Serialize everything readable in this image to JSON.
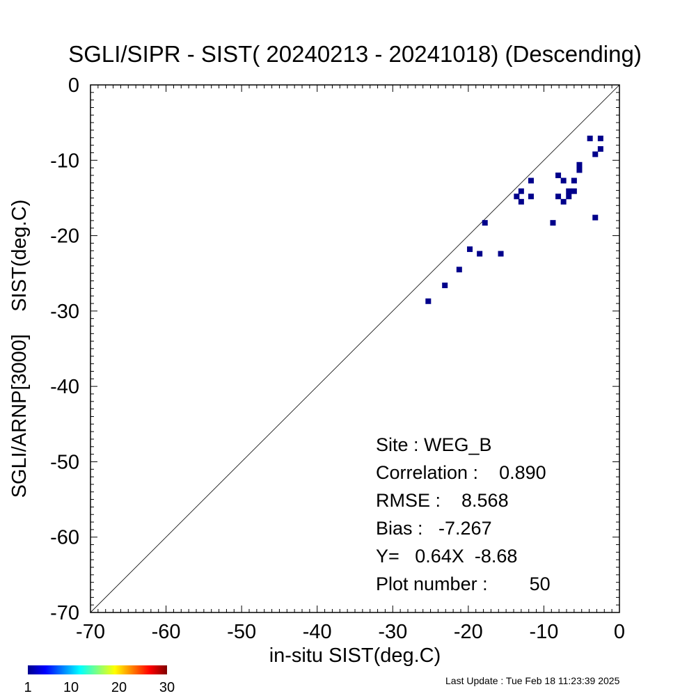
{
  "chart_data": {
    "type": "scatter",
    "title": "SGLI/SIPR - SIST( 20240213 - 20241018) (Descending)",
    "xlabel": "in-situ SIST(deg.C)",
    "ylabel": "SGLI/ARNP[3000]    SIST(deg.C)",
    "xlim": [
      -70,
      0
    ],
    "ylim": [
      -70,
      0
    ],
    "x_ticks": [
      "-70",
      "-60",
      "-50",
      "-40",
      "-30",
      "-20",
      "-10",
      "0"
    ],
    "y_ticks": [
      "0",
      "-10",
      "-20",
      "-30",
      "-40",
      "-50",
      "-60",
      "-70"
    ],
    "grid": false,
    "reference_line": "1:1",
    "marker_color": "#00008b",
    "points": [
      {
        "x": -25.3,
        "y": -28.7
      },
      {
        "x": -23.1,
        "y": -26.6
      },
      {
        "x": -21.2,
        "y": -24.5
      },
      {
        "x": -19.8,
        "y": -21.8
      },
      {
        "x": -18.5,
        "y": -22.4
      },
      {
        "x": -17.8,
        "y": -18.3
      },
      {
        "x": -15.7,
        "y": -22.4
      },
      {
        "x": -13.6,
        "y": -14.8
      },
      {
        "x": -13.0,
        "y": -14.1
      },
      {
        "x": -13.0,
        "y": -15.5
      },
      {
        "x": -11.7,
        "y": -12.7
      },
      {
        "x": -11.7,
        "y": -14.8
      },
      {
        "x": -8.8,
        "y": -18.3
      },
      {
        "x": -8.1,
        "y": -12.0
      },
      {
        "x": -8.1,
        "y": -14.8
      },
      {
        "x": -7.4,
        "y": -12.7
      },
      {
        "x": -7.4,
        "y": -15.5
      },
      {
        "x": -6.7,
        "y": -14.1
      },
      {
        "x": -6.7,
        "y": -14.8
      },
      {
        "x": -6.0,
        "y": -12.7
      },
      {
        "x": -6.0,
        "y": -14.1
      },
      {
        "x": -5.3,
        "y": -10.6
      },
      {
        "x": -5.3,
        "y": -11.3
      },
      {
        "x": -3.9,
        "y": -7.1
      },
      {
        "x": -3.2,
        "y": -9.2
      },
      {
        "x": -3.2,
        "y": -17.6
      },
      {
        "x": -2.5,
        "y": -7.1
      },
      {
        "x": -2.5,
        "y": -8.5
      }
    ],
    "stats": [
      "Site : WEG_B",
      "Correlation :    0.890",
      "RMSE :    8.568",
      "Bias :   -7.267",
      "Y=   0.64X  -8.68",
      "Plot number :        50"
    ],
    "colorbar": {
      "labels": [
        "1",
        "10",
        "20",
        "30"
      ],
      "min": 1,
      "max": 30,
      "colors": [
        "#00008f",
        "#0000ff",
        "#0080ff",
        "#00ffff",
        "#80ff80",
        "#ffff00",
        "#ff8000",
        "#ff0000",
        "#800000"
      ]
    }
  },
  "footer": {
    "last_update": "Last Update : Tue Feb 18 11:23:39 2025"
  }
}
